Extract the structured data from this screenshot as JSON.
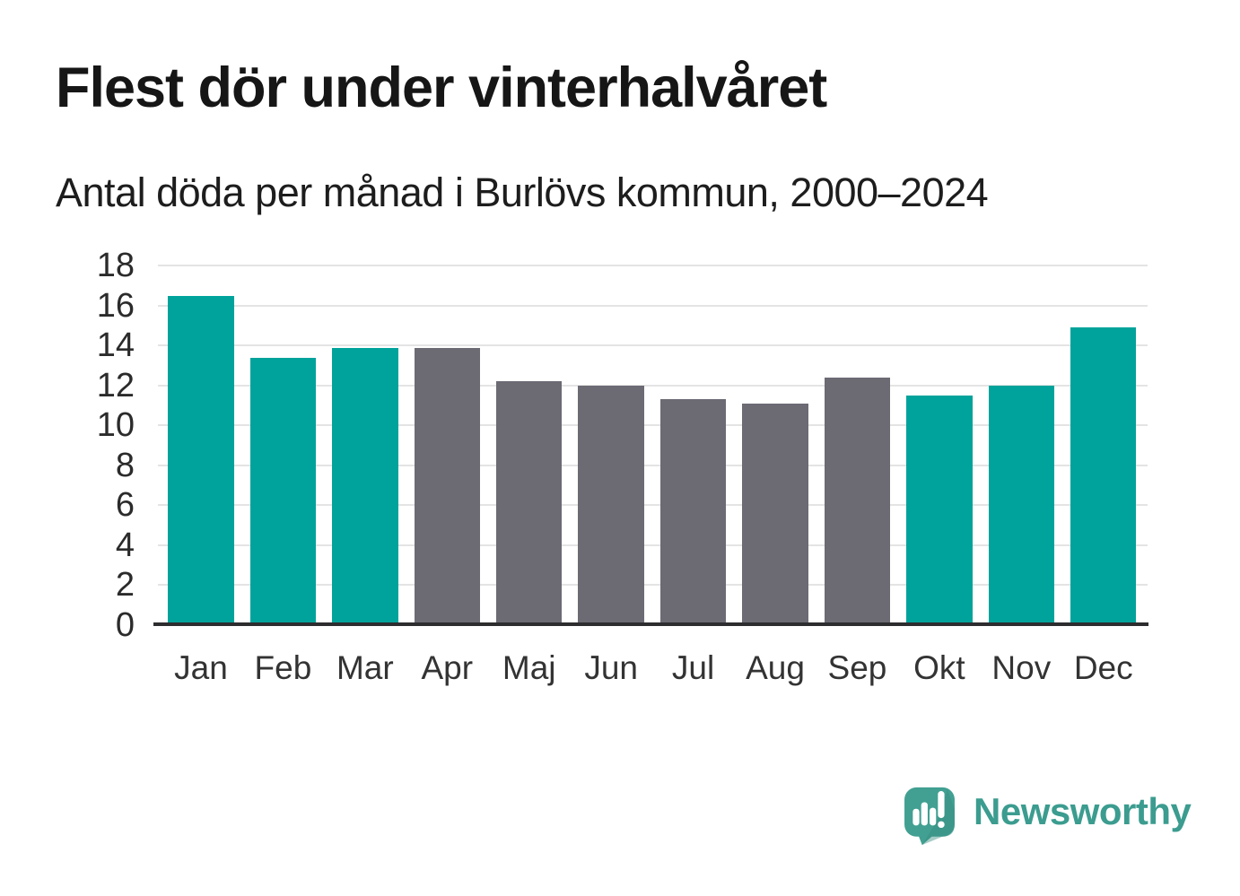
{
  "header": {
    "title": "Flest dör under vinterhalvåret",
    "subtitle": "Antal döda per månad i Burlövs kommun, 2000–2024"
  },
  "chart_data": {
    "type": "bar",
    "title": "Flest dör under vinterhalvåret",
    "subtitle": "Antal döda per månad i Burlövs kommun, 2000–2024",
    "categories": [
      "Jan",
      "Feb",
      "Mar",
      "Apr",
      "Maj",
      "Jun",
      "Jul",
      "Aug",
      "Sep",
      "Okt",
      "Nov",
      "Dec"
    ],
    "values": [
      16.4,
      13.3,
      13.8,
      13.8,
      12.1,
      11.9,
      11.2,
      11.0,
      12.3,
      11.4,
      11.9,
      14.8
    ],
    "bar_colors": [
      "#00a39b",
      "#00a39b",
      "#00a39b",
      "#6c6b74",
      "#6c6b74",
      "#6c6b74",
      "#6c6b74",
      "#6c6b74",
      "#6c6b74",
      "#00a39b",
      "#00a39b",
      "#00a39b"
    ],
    "color_legend": {
      "winter_half_year": "#00a39b",
      "summer_half_year": "#6c6b74"
    },
    "xlabel": "",
    "ylabel": "",
    "ylim": [
      0,
      18
    ],
    "ytick_step": 2,
    "grid": true,
    "legend_position": "none"
  },
  "branding": {
    "logo_text": "Newsworthy",
    "logo_color": "#3b9c8f",
    "logo_icon": "speech-bubble-bar-chart-icon"
  }
}
